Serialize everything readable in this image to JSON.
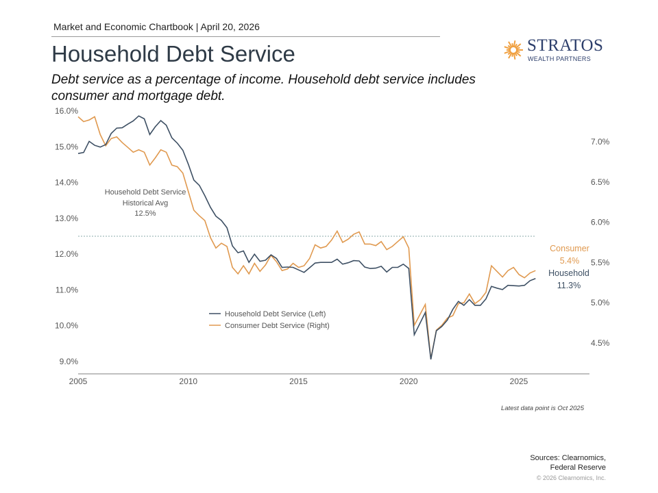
{
  "header": {
    "chartbook": "Market and Economic Chartbook | April 20, 2026",
    "title": "Household Debt Service",
    "subtitle": "Debt service as a percentage of income. Household debt service includes consumer and mortgage debt."
  },
  "logo": {
    "name": "STRATOS",
    "sub": "WEALTH PARTNERS",
    "sun_color": "#f0a040"
  },
  "footer": {
    "latest": "Latest data point is Oct 2025",
    "sources_line1": "Sources: Clearnomics,",
    "sources_line2": "Federal Reserve",
    "copyright": "© 2026 Clearnomics, Inc."
  },
  "chart_data": {
    "type": "line",
    "title": "",
    "frequency": "quarterly",
    "x_ticks": [
      "2005",
      "2010",
      "2015",
      "2020",
      "2025"
    ],
    "y_left": {
      "ticks": [
        "16.0%",
        "15.0%",
        "14.0%",
        "13.0%",
        "12.0%",
        "11.0%",
        "10.0%",
        "9.0%"
      ],
      "range": [
        9.0,
        16.0
      ]
    },
    "y_right": {
      "ticks": [
        "7.0%",
        "6.5%",
        "6.0%",
        "5.5%",
        "5.0%",
        "4.5%"
      ],
      "range": [
        4.3,
        7.35
      ]
    },
    "x": [
      "2005Q1",
      "2005Q2",
      "2005Q3",
      "2005Q4",
      "2006Q1",
      "2006Q2",
      "2006Q3",
      "2006Q4",
      "2007Q1",
      "2007Q2",
      "2007Q3",
      "2007Q4",
      "2008Q1",
      "2008Q2",
      "2008Q3",
      "2008Q4",
      "2009Q1",
      "2009Q2",
      "2009Q3",
      "2009Q4",
      "2010Q1",
      "2010Q2",
      "2010Q3",
      "2010Q4",
      "2011Q1",
      "2011Q2",
      "2011Q3",
      "2011Q4",
      "2012Q1",
      "2012Q2",
      "2012Q3",
      "2012Q4",
      "2013Q1",
      "2013Q2",
      "2013Q3",
      "2013Q4",
      "2014Q1",
      "2014Q2",
      "2014Q3",
      "2014Q4",
      "2015Q1",
      "2015Q2",
      "2015Q3",
      "2015Q4",
      "2016Q1",
      "2016Q2",
      "2016Q3",
      "2016Q4",
      "2017Q1",
      "2017Q2",
      "2017Q3",
      "2017Q4",
      "2018Q1",
      "2018Q2",
      "2018Q3",
      "2018Q4",
      "2019Q1",
      "2019Q2",
      "2019Q3",
      "2019Q4",
      "2020Q1",
      "2020Q2",
      "2020Q3",
      "2020Q4",
      "2021Q1",
      "2021Q2",
      "2021Q3",
      "2021Q4",
      "2022Q1",
      "2022Q2",
      "2022Q3",
      "2022Q4",
      "2023Q1",
      "2023Q2",
      "2023Q3",
      "2023Q4",
      "2024Q1",
      "2024Q2",
      "2024Q3",
      "2024Q4",
      "2025Q1",
      "2025Q2",
      "2025Q3",
      "2025Q4"
    ],
    "series": [
      {
        "name": "Household Debt Service (Left)",
        "axis": "left",
        "color": "#3d4f63",
        "values": [
          14.81,
          14.84,
          15.15,
          15.04,
          14.99,
          15.06,
          15.37,
          15.52,
          15.53,
          15.63,
          15.72,
          15.86,
          15.78,
          15.34,
          15.56,
          15.73,
          15.6,
          15.25,
          15.1,
          14.9,
          14.51,
          14.07,
          13.92,
          13.63,
          13.31,
          13.06,
          12.94,
          12.74,
          12.23,
          12.04,
          12.09,
          11.77,
          12.0,
          11.8,
          11.83,
          11.98,
          11.88,
          11.63,
          11.64,
          11.63,
          11.56,
          11.49,
          11.62,
          11.75,
          11.77,
          11.77,
          11.77,
          11.86,
          11.72,
          11.76,
          11.82,
          11.81,
          11.64,
          11.6,
          11.61,
          11.66,
          11.5,
          11.63,
          11.63,
          11.72,
          11.6,
          9.75,
          10.06,
          10.37,
          9.06,
          9.86,
          9.98,
          10.16,
          10.46,
          10.68,
          10.57,
          10.73,
          10.57,
          10.57,
          10.75,
          11.1,
          11.05,
          11.01,
          11.13,
          11.12,
          11.11,
          11.13,
          11.26,
          11.32
        ]
      },
      {
        "name": "Consumer Debt Service (Right)",
        "axis": "right",
        "color": "#e0994f",
        "values": [
          7.31,
          7.25,
          7.27,
          7.31,
          7.09,
          6.95,
          7.04,
          7.06,
          6.99,
          6.93,
          6.87,
          6.9,
          6.87,
          6.71,
          6.8,
          6.9,
          6.87,
          6.71,
          6.69,
          6.61,
          6.38,
          6.15,
          6.08,
          6.02,
          5.81,
          5.68,
          5.74,
          5.7,
          5.44,
          5.36,
          5.46,
          5.36,
          5.49,
          5.39,
          5.47,
          5.59,
          5.51,
          5.4,
          5.42,
          5.49,
          5.44,
          5.46,
          5.55,
          5.72,
          5.68,
          5.7,
          5.78,
          5.89,
          5.75,
          5.79,
          5.85,
          5.88,
          5.73,
          5.73,
          5.71,
          5.76,
          5.66,
          5.7,
          5.76,
          5.82,
          5.68,
          4.72,
          4.85,
          4.98,
          4.3,
          4.66,
          4.72,
          4.81,
          4.84,
          4.99,
          5.0,
          5.11,
          4.99,
          5.04,
          5.13,
          5.46,
          5.39,
          5.32,
          5.4,
          5.44,
          5.35,
          5.31,
          5.37,
          5.4
        ]
      }
    ],
    "average_line": {
      "value": 12.5,
      "axis": "left",
      "label_line1": "Household Debt Service",
      "label_line2": "Historical Avg",
      "label_value": "12.5%"
    },
    "end_labels": {
      "consumer_name": "Consumer",
      "consumer_value": "5.4%",
      "household_name": "Household",
      "household_value": "11.3%"
    },
    "legend_position": "center",
    "grid": false
  }
}
